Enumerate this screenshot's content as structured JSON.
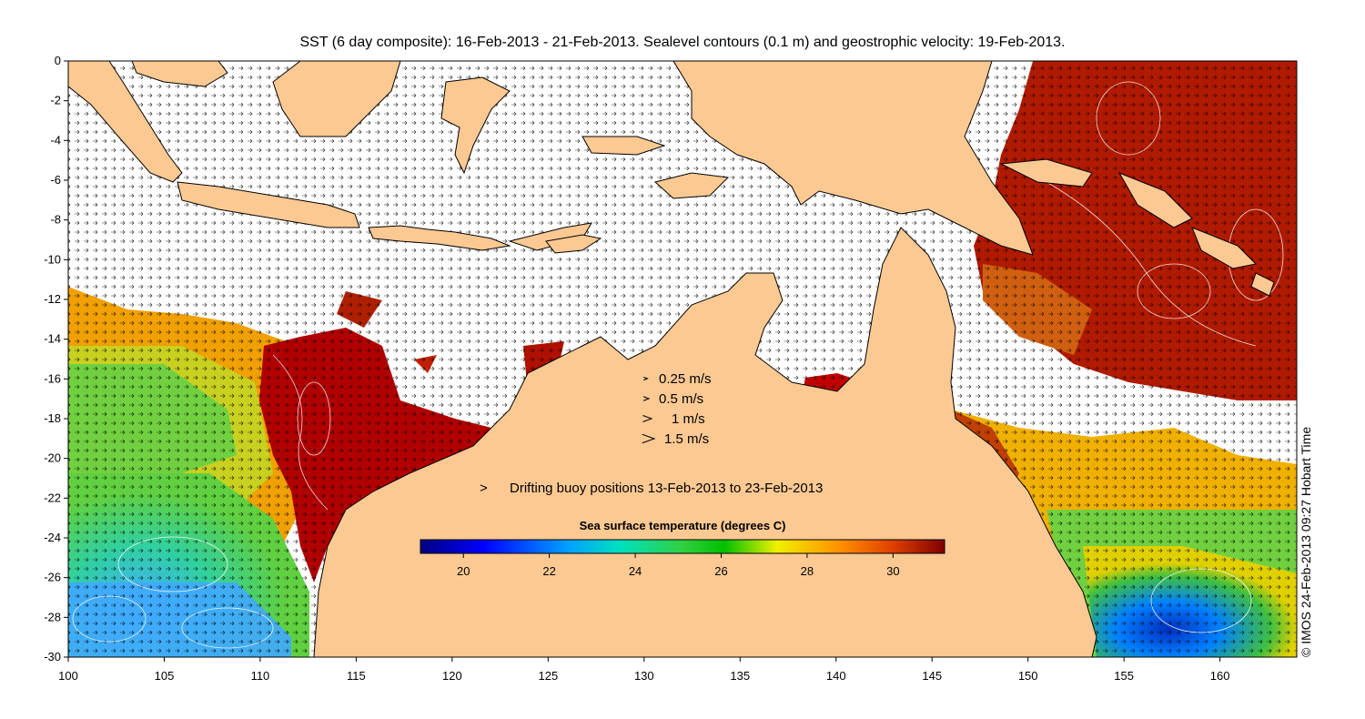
{
  "title": "SST (6 day composite): 16-Feb-2013 - 21-Feb-2013. Sealevel contours (0.1 m) and geostrophic velocity: 19-Feb-2013.",
  "map": {
    "lon_range": [
      100,
      164
    ],
    "lat_range": [
      -30,
      0
    ],
    "lon_ticks": [
      "100",
      "105",
      "110",
      "115",
      "120",
      "125",
      "130",
      "135",
      "140",
      "145",
      "150",
      "155",
      "160"
    ],
    "lat_ticks": [
      "0",
      "-2",
      "-4",
      "-6",
      "-8",
      "-10",
      "-12",
      "-14",
      "-16",
      "-18",
      "-20",
      "-22",
      "-24",
      "-26",
      "-28",
      "-30"
    ],
    "land_color": "#fcc993"
  },
  "velocity_legend": [
    {
      "label": "0.25 m/s",
      "speed": 0.25
    },
    {
      "label": "0.5 m/s",
      "speed": 0.5
    },
    {
      "label": "1 m/s",
      "speed": 1
    },
    {
      "label": "1.5 m/s",
      "speed": 1.5
    }
  ],
  "buoy_legend": {
    "symbol": ">",
    "label": "Drifting buoy positions 13-Feb-2013 to 23-Feb-2013",
    "color": "#ff00ff"
  },
  "colorbar": {
    "title": "Sea surface temperature (degrees C)",
    "range": [
      19,
      31.2
    ],
    "ticks": [
      "20",
      "22",
      "24",
      "26",
      "28",
      "30"
    ],
    "colors": [
      "#00007f",
      "#0000ff",
      "#007fff",
      "#00ffff",
      "#7fff7f",
      "#00c800",
      "#ffff00",
      "#ff7f00",
      "#ff0000",
      "#7f0000"
    ]
  },
  "credit": "© IMOS 24-Feb-2013 09:27 Hobart Time"
}
